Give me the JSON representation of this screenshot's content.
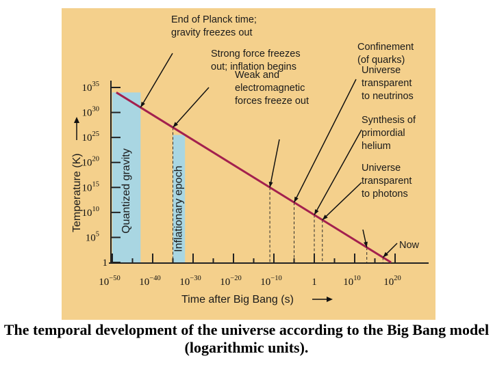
{
  "caption": "The temporal development of the universe according to the Big Bang model (logarithmic units).",
  "colors": {
    "panel_bg": "#f4d08c",
    "epoch_fill": "#a9d6e2",
    "line": "#a3204e",
    "axis": "#222222"
  },
  "chart_data": {
    "type": "line",
    "xlabel": "Time after Big Bang (s)",
    "ylabel": "Temperature (K)",
    "x_scale": "log",
    "y_scale": "log",
    "xlim": [
      1e-50,
      1e+20
    ],
    "ylim": [
      1,
      1e+35
    ],
    "x_ticks": [
      {
        "base": "10",
        "exp": "−50"
      },
      {
        "base": "10",
        "exp": "−40"
      },
      {
        "base": "10",
        "exp": "−30"
      },
      {
        "base": "10",
        "exp": "−20"
      },
      {
        "base": "10",
        "exp": "−10"
      },
      {
        "base": "1",
        "exp": ""
      },
      {
        "base": "10",
        "exp": "10"
      },
      {
        "base": "10",
        "exp": "20"
      }
    ],
    "y_ticks": [
      {
        "base": "1",
        "exp": ""
      },
      {
        "base": "10",
        "exp": "5"
      },
      {
        "base": "10",
        "exp": "10"
      },
      {
        "base": "10",
        "exp": "15"
      },
      {
        "base": "10",
        "exp": "20"
      },
      {
        "base": "10",
        "exp": "25"
      },
      {
        "base": "10",
        "exp": "30"
      },
      {
        "base": "10",
        "exp": "35"
      }
    ],
    "series": [
      {
        "x": [
          1e-49,
          1e+19
        ],
        "y": [
          1e+34,
          1
        ]
      }
    ],
    "shaded_regions": [
      {
        "label": "Quantized gravity",
        "x_range": [
          1e-50,
          1e-43
        ]
      },
      {
        "label": "Inflationary epoch",
        "x_range": [
          1e-35,
          1e-32
        ]
      }
    ],
    "events": [
      {
        "label": "End of Planck time; gravity freezes out",
        "x": 1e-43
      },
      {
        "label": "Strong force freezes out; inflation begins",
        "x": 1e-35
      },
      {
        "label": "Weak and electromagnetic forces freeze out",
        "x": 1e-11
      },
      {
        "label": "Confinement (of quarks)",
        "x": 1e-05
      },
      {
        "label": "Universe transparent to neutrinos",
        "x": 1
      },
      {
        "label": "Synthesis of primordial helium",
        "x": 100
      },
      {
        "label": "Universe transparent to photons",
        "x": 10000000000000.0
      },
      {
        "label": "Now",
        "x": 1e+17
      }
    ]
  }
}
